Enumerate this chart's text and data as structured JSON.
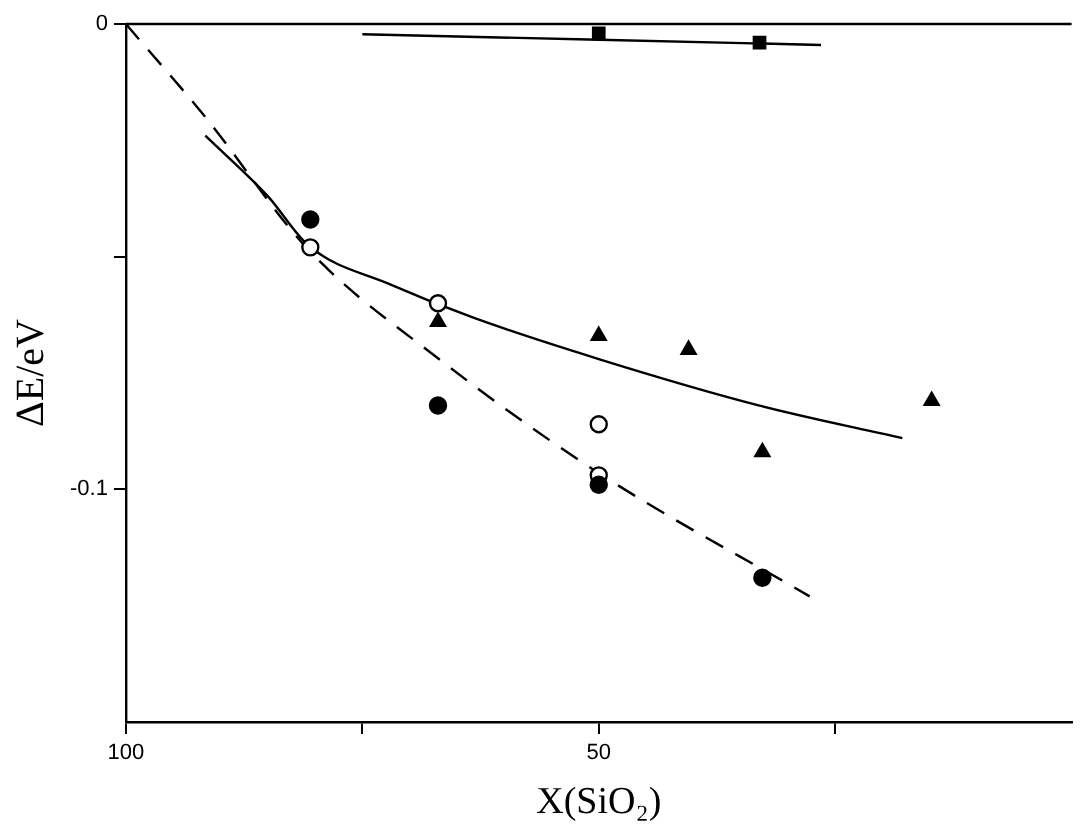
{
  "chart_data": {
    "type": "scatter",
    "xlabel": "X(SiO₂)",
    "ylabel": "ΔE/eV",
    "xlim": [
      100,
      0
    ],
    "ylim": [
      -0.15,
      0
    ],
    "xticks": [
      100,
      {
        "value": 75,
        "label": null
      },
      50,
      {
        "value": 25,
        "label": null
      }
    ],
    "yticks": [
      0,
      {
        "value": -0.05,
        "label": null
      },
      -0.1
    ],
    "grid": false,
    "legend": false,
    "series": [
      {
        "marker": "square",
        "color": "#000000",
        "x": [
          50,
          33
        ],
        "values": [
          -0.002,
          -0.004
        ]
      },
      {
        "marker": "circle",
        "color": "#000000",
        "x": [
          80.5,
          67,
          50,
          32.7
        ],
        "values": [
          -0.042,
          -0.082,
          -0.099,
          -0.119
        ]
      },
      {
        "marker": "open-circle",
        "color": "#000000",
        "x": [
          80.5,
          67,
          50,
          50
        ],
        "values": [
          -0.048,
          -0.06,
          -0.086,
          -0.097
        ]
      },
      {
        "marker": "triangle",
        "color": "#000000",
        "x": [
          67,
          50,
          40.5,
          32.7,
          14.8
        ],
        "values": [
          -0.064,
          -0.067,
          -0.07,
          -0.092,
          -0.081
        ]
      },
      {
        "type": "line",
        "line_style": "solid",
        "color": "#000000",
        "x": [
          75,
          26.5
        ],
        "values": [
          -0.0022,
          -0.0045
        ]
      },
      {
        "type": "line",
        "line_style": "solid",
        "color": "#000000",
        "x": [
          91.6,
          85,
          80.7,
          72,
          63.4,
          50,
          33,
          17.9
        ],
        "values": [
          -0.024,
          -0.037,
          -0.0476,
          -0.056,
          -0.063,
          -0.072,
          -0.082,
          -0.089
        ]
      },
      {
        "type": "line",
        "line_style": "dashed",
        "color": "#000000",
        "x": [
          100,
          91.6,
          80.7,
          66.9,
          50,
          27.7
        ],
        "values": [
          0,
          -0.02,
          -0.0485,
          -0.072,
          -0.0965,
          -0.123
        ]
      }
    ]
  }
}
